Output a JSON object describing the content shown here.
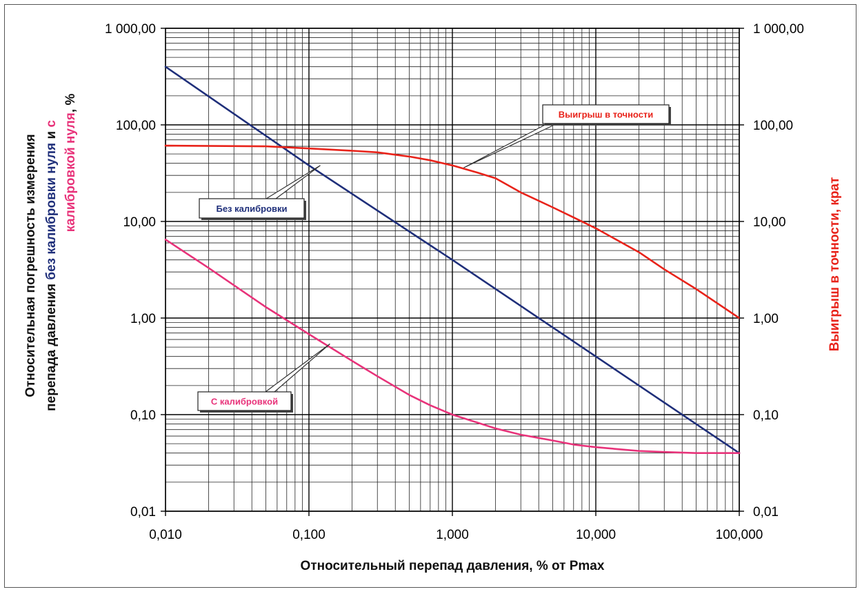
{
  "chart_data": {
    "type": "line",
    "x_scale": "log",
    "y_scale": "log",
    "xlim": [
      0.01,
      100
    ],
    "ylim": [
      0.01,
      1000
    ],
    "y2lim": [
      0.01,
      1000
    ],
    "grid": true,
    "x_tick_labels": [
      "0,010",
      "0,100",
      "1,000",
      "10,000",
      "100,000"
    ],
    "y_tick_labels": [
      "0,01",
      "0,10",
      "1,00",
      "10,00",
      "100,00",
      "1 000,00"
    ],
    "y2_tick_labels": [
      "0,01",
      "0,10",
      "1,00",
      "10,00",
      "100,00",
      "1 000,00"
    ],
    "xlabel": "Относительный перепад давления, % от Pmax",
    "ylabel_line1": "Относительная погрешность измерения",
    "ylabel_line2_part1": "перепада давления ",
    "ylabel_line2_part2": "без калибровки нуля",
    "ylabel_line2_part3": " и ",
    "ylabel_line2_part4": "с",
    "ylabel_line3_part1": "калибровкой нуля",
    "ylabel_line3_part2": ", %",
    "y2label": "Выигрыш в точности, крат",
    "series": [
      {
        "name": "Без калибровки",
        "axis": "left",
        "color": "#1f2f7a",
        "x": [
          0.01,
          0.1,
          1,
          10,
          100
        ],
        "y": [
          400,
          38,
          4.0,
          0.4,
          0.04
        ]
      },
      {
        "name": "С калибровкой",
        "axis": "left",
        "color": "#e8337a",
        "x": [
          0.01,
          0.02,
          0.05,
          0.1,
          0.2,
          0.3,
          0.5,
          0.7,
          1,
          2,
          3,
          5,
          7,
          10,
          20,
          30,
          50,
          100
        ],
        "y": [
          6.5,
          3.3,
          1.3,
          0.68,
          0.36,
          0.25,
          0.16,
          0.125,
          0.1,
          0.072,
          0.062,
          0.054,
          0.049,
          0.046,
          0.042,
          0.041,
          0.04,
          0.04
        ]
      },
      {
        "name": "Выигрыш в точности",
        "axis": "right",
        "color": "#e8231a",
        "x": [
          0.01,
          0.05,
          0.1,
          0.2,
          0.3,
          0.5,
          0.7,
          1,
          1.5,
          2,
          3,
          5,
          7,
          10,
          20,
          30,
          50,
          100
        ],
        "y": [
          61,
          60,
          57,
          54,
          52,
          47,
          43,
          38,
          32,
          28,
          20,
          14,
          11,
          8.5,
          4.8,
          3.2,
          2.0,
          1.0
        ]
      }
    ],
    "annotations": [
      {
        "text": "Без калибровки",
        "color": "#1f2f7a",
        "target_x": 0.12,
        "target_y": 38
      },
      {
        "text": "С калибровкой",
        "color": "#e8337a",
        "target_x": 0.14,
        "target_y": 0.54
      },
      {
        "text": "Выигрыш в точности",
        "color": "#e8231a",
        "target_x": 1.2,
        "target_y": 36
      }
    ]
  }
}
